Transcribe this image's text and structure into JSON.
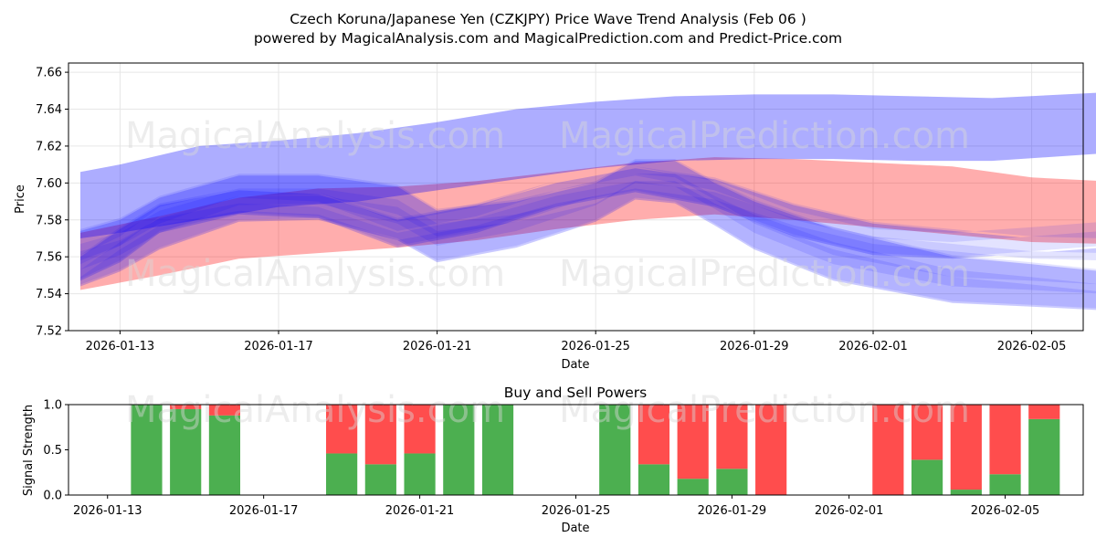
{
  "header": {
    "title": "Czech Koruna/Japanese Yen (CZKJPY) Price Wave Trend Analysis (Feb 06 )",
    "subtitle": "powered by MagicalAnalysis.com and MagicalPrediction.com and Predict-Price.com"
  },
  "watermarks": {
    "left": "MagicalAnalysis.com",
    "right": "MagicalPrediction.com"
  },
  "colors": {
    "red_band": "#ff0000",
    "blue_band": "#0000ff",
    "buy": "#4caf50",
    "sell": "#ff4d4d",
    "grid": "#e6e6e6"
  },
  "chart_data": [
    {
      "type": "area",
      "title": "",
      "xlabel": "Date",
      "ylabel": "Price",
      "ylim": [
        7.52,
        7.665
      ],
      "y_ticks": [
        "7.52",
        "7.54",
        "7.56",
        "7.58",
        "7.60",
        "7.62",
        "7.64",
        "7.66"
      ],
      "y_tick_values": [
        7.52,
        7.54,
        7.56,
        7.58,
        7.6,
        7.62,
        7.64,
        7.66
      ],
      "x_ticks": [
        "2026-01-13",
        "2026-01-17",
        "2026-01-21",
        "2026-01-25",
        "2026-01-29",
        "2026-02-01",
        "2026-02-05"
      ],
      "x_tick_days": [
        1,
        5,
        9,
        13,
        17,
        20,
        24
      ],
      "x_range_days": [
        -0.3,
        25.3
      ],
      "grid": true,
      "series": [
        {
          "name": "red wide band",
          "color": "red",
          "x": [
            -0.2,
            2,
            4,
            6,
            8,
            10,
            12,
            14,
            16,
            18,
            20,
            22,
            24,
            25.8
          ],
          "upper": [
            7.573,
            7.582,
            7.592,
            7.597,
            7.598,
            7.601,
            7.606,
            7.611,
            7.614,
            7.613,
            7.611,
            7.609,
            7.603,
            7.601
          ],
          "lower": [
            7.542,
            7.55,
            7.559,
            7.562,
            7.565,
            7.569,
            7.575,
            7.58,
            7.583,
            7.58,
            7.576,
            7.572,
            7.568,
            7.567
          ]
        },
        {
          "name": "blue upper band",
          "color": "blue",
          "x": [
            -1,
            1,
            3,
            5,
            7,
            9,
            11,
            13,
            15,
            17,
            19,
            21,
            23,
            25.8
          ],
          "upper": [
            7.606,
            7.61,
            7.62,
            7.623,
            7.627,
            7.633,
            7.64,
            7.644,
            7.647,
            7.648,
            7.648,
            7.647,
            7.646,
            7.649
          ],
          "lower": [
            7.57,
            7.573,
            7.58,
            7.587,
            7.59,
            7.596,
            7.602,
            7.608,
            7.612,
            7.613,
            7.613,
            7.612,
            7.612,
            7.616
          ]
        },
        {
          "name": "blue wave band",
          "color": "blue",
          "x": [
            -1,
            1,
            2,
            4,
            6,
            8,
            9,
            11,
            13,
            14,
            15,
            16,
            17,
            19,
            20,
            21,
            22,
            24,
            25.8
          ],
          "upper": [
            7.574,
            7.58,
            7.592,
            7.604,
            7.604,
            7.598,
            7.585,
            7.59,
            7.6,
            7.612,
            7.612,
            7.6,
            7.59,
            7.575,
            7.57,
            7.565,
            7.56,
            7.556,
            7.552
          ],
          "lower": [
            7.545,
            7.553,
            7.565,
            7.58,
            7.581,
            7.57,
            7.558,
            7.566,
            7.58,
            7.592,
            7.59,
            7.578,
            7.565,
            7.548,
            7.544,
            7.54,
            7.536,
            7.534,
            7.532
          ]
        },
        {
          "name": "purple overlap band",
          "color": "blue",
          "x": [
            -1,
            1,
            2,
            4,
            6,
            8,
            10,
            12,
            14,
            16,
            18,
            20,
            22,
            24,
            25.8
          ],
          "upper": [
            7.56,
            7.575,
            7.588,
            7.596,
            7.594,
            7.58,
            7.588,
            7.6,
            7.608,
            7.602,
            7.588,
            7.578,
            7.574,
            7.57,
            7.569
          ],
          "lower": [
            7.548,
            7.558,
            7.574,
            7.584,
            7.582,
            7.566,
            7.574,
            7.588,
            7.596,
            7.588,
            7.572,
            7.562,
            7.56,
            7.563,
            7.566
          ]
        }
      ]
    },
    {
      "type": "bar",
      "title": "Buy and Sell Powers",
      "xlabel": "Date",
      "ylabel": "Signal Strength",
      "ylim": [
        0,
        1.0
      ],
      "y_ticks": [
        "0.0",
        "0.5",
        "1.0"
      ],
      "y_tick_values": [
        0.0,
        0.5,
        1.0
      ],
      "x_ticks": [
        "2026-01-13",
        "2026-01-17",
        "2026-01-21",
        "2026-01-25",
        "2026-01-29",
        "2026-02-01",
        "2026-02-05"
      ],
      "x_tick_days": [
        0,
        4,
        8,
        12,
        16,
        19,
        23
      ],
      "x_range_days": [
        -1.0,
        25.0
      ],
      "x_days": [
        1,
        2,
        3,
        6,
        7,
        8,
        9,
        10,
        13,
        14,
        15,
        16,
        17,
        20,
        21,
        22,
        23,
        24
      ],
      "buy": [
        1.0,
        0.95,
        0.88,
        0.46,
        0.34,
        0.46,
        1.0,
        1.0,
        1.0,
        0.34,
        0.18,
        0.29,
        0.0,
        0.0,
        0.39,
        0.06,
        0.23,
        0.84
      ],
      "sell": [
        0.0,
        0.05,
        0.12,
        0.54,
        0.66,
        0.54,
        0.0,
        0.0,
        0.0,
        0.66,
        0.82,
        0.71,
        1.0,
        1.0,
        0.61,
        0.94,
        0.77,
        0.16
      ]
    }
  ]
}
